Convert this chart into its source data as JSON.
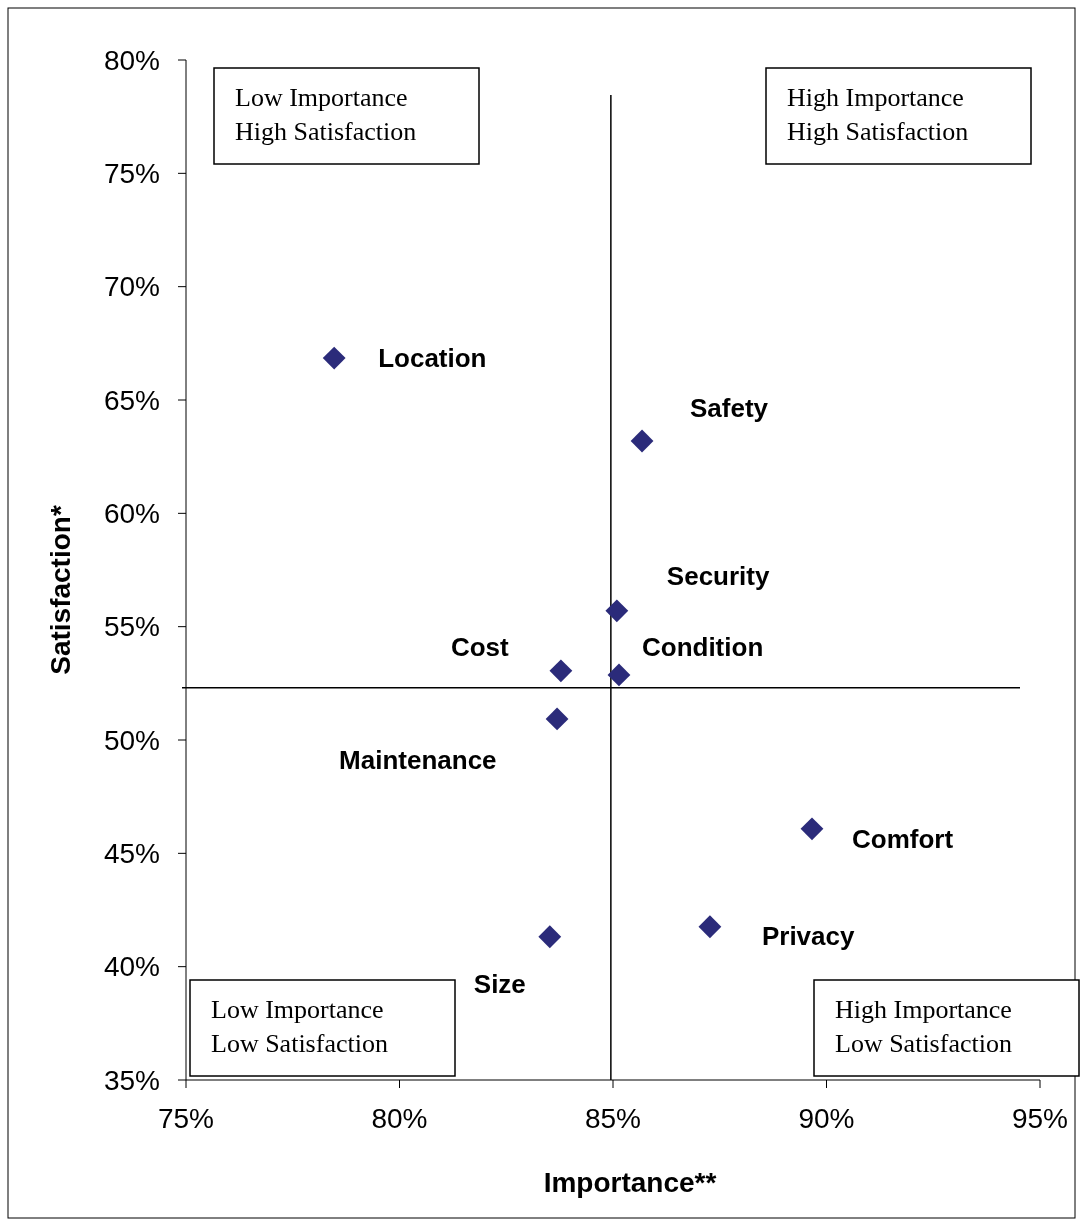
{
  "chart_data": {
    "type": "scatter",
    "xlabel": "Importance**",
    "ylabel": "Satisfaction*",
    "x": [
      78.47,
      85.68,
      85.09,
      83.78,
      85.14,
      83.69,
      89.66,
      87.27,
      83.52
    ],
    "series": [
      {
        "color": "#2b2b7a",
        "values": [
          66.85,
          63.19,
          55.7,
          53.05,
          52.87,
          50.93,
          46.08,
          41.76,
          41.32
        ]
      }
    ],
    "marker": "diamond",
    "grid": false,
    "xlim": [
      75,
      95
    ],
    "xticks": [
      {
        "value": 75,
        "label": "75%"
      },
      {
        "value": 80,
        "label": "80%"
      },
      {
        "value": 85,
        "label": "85%"
      },
      {
        "value": 90,
        "label": "90%"
      },
      {
        "value": 95,
        "label": "95%"
      }
    ],
    "ylim": [
      35,
      80
    ],
    "yticks": [
      {
        "value": 35,
        "label": "35%"
      },
      {
        "value": 40,
        "label": "40%"
      },
      {
        "value": 45,
        "label": "45%"
      },
      {
        "value": 50,
        "label": "50%"
      },
      {
        "value": 55,
        "label": "55%"
      },
      {
        "value": 60,
        "label": "60%"
      },
      {
        "value": 65,
        "label": "65%"
      },
      {
        "value": 70,
        "label": "70%"
      },
      {
        "value": 75,
        "label": "75%"
      },
      {
        "value": 80,
        "label": "80%"
      }
    ],
    "ref_lines": [
      {
        "axis": "x",
        "value": 84.95,
        "color": "#000000"
      },
      {
        "axis": "y",
        "value": 52.3,
        "color": "#000000"
      }
    ],
    "annotations": [
      {
        "text": "Location",
        "x": 78.47,
        "y": 66.85
      },
      {
        "text": "Safety",
        "x": 85.68,
        "y": 63.19
      },
      {
        "text": "Security",
        "x": 85.09,
        "y": 55.7
      },
      {
        "text": "Cost",
        "x": 83.78,
        "y": 53.05
      },
      {
        "text": "Condition",
        "x": 85.14,
        "y": 52.87
      },
      {
        "text": "Maintenance",
        "x": 83.69,
        "y": 50.93
      },
      {
        "text": "Comfort",
        "x": 89.66,
        "y": 46.08
      },
      {
        "text": "Privacy",
        "x": 87.27,
        "y": 41.76
      },
      {
        "text": "Size",
        "x": 83.52,
        "y": 41.32
      },
      "Low Importance\nHigh Satisfaction",
      "High Importance\nHigh Satisfaction",
      "Low Importance\nLow Satisfaction",
      "High Importance\nLow Satisfaction"
    ]
  }
}
